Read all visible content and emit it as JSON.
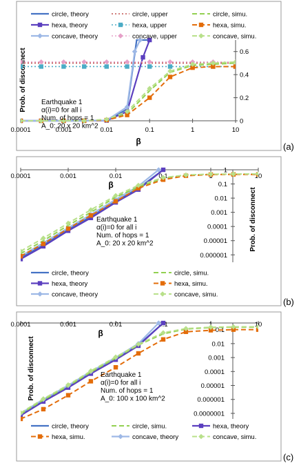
{
  "panel_labels": [
    "(a)",
    "(b)",
    "(c)"
  ],
  "colors": {
    "circle_theory": "#4472C4",
    "hexa_theory": "#5B3FBF",
    "concave_theory": "#9DB8E6",
    "circle_upper": "#C0504D",
    "hexa_upper": "#4BACC6",
    "concave_upper": "#E6A0C8",
    "circle_simu": "#92D050",
    "hexa_simu": "#E36C09",
    "concave_simu": "#B8E08A"
  },
  "chart_data": [
    {
      "type": "line",
      "panel": "(a)",
      "xlabel": "β",
      "ylabel": "Prob. of disconnect",
      "x_scale": "log",
      "y_scale": "linear",
      "xlim": [
        0.0001,
        10
      ],
      "ylim": [
        0,
        0.7
      ],
      "x_ticks": [
        "0.0001",
        "0.001",
        "0.01",
        "0.1",
        "1",
        "10"
      ],
      "y_ticks": [
        "0",
        "0.2",
        "0.4",
        "0.6"
      ],
      "annotation": [
        "Earthquake  1",
        "α(i)=0 for all i",
        "Num. of hops = 1",
        "A_0: 20 x 20 km^2"
      ],
      "legend": [
        "circle, theory",
        "circle, upper",
        "circle, simu.",
        "hexa, theory",
        "hexa, upper",
        "hexa, simu.",
        "concave, theory",
        "concave, upper",
        "concave, simu."
      ],
      "series": [
        {
          "name": "circle, theory",
          "style": "circle_theory",
          "x": [
            0.0001,
            0.0003,
            0.001,
            0.003,
            0.01,
            0.03,
            0.05,
            0.1
          ],
          "y": [
            0,
            0,
            0,
            0,
            0.003,
            0.1,
            0.7,
            0.7
          ]
        },
        {
          "name": "hexa, theory",
          "style": "hexa_theory",
          "x": [
            0.0001,
            0.0003,
            0.001,
            0.003,
            0.01,
            0.03,
            0.07,
            0.1
          ],
          "y": [
            0,
            0,
            0,
            0,
            0.002,
            0.08,
            0.55,
            0.7
          ]
        },
        {
          "name": "concave, theory",
          "style": "concave_theory",
          "x": [
            0.0001,
            0.0003,
            0.001,
            0.003,
            0.01,
            0.03,
            0.045,
            0.06
          ],
          "y": [
            0,
            0,
            0,
            0,
            0.004,
            0.12,
            0.6,
            0.7
          ]
        },
        {
          "name": "circle, upper",
          "style": "circle_upper",
          "x": [
            0.0001,
            0.0003,
            0.001,
            0.003,
            0.01,
            0.03,
            0.1,
            0.3,
            1,
            3,
            10
          ],
          "y": [
            0.5,
            0.5,
            0.5,
            0.5,
            0.5,
            0.5,
            0.5,
            0.5,
            0.5,
            0.5,
            0.5
          ]
        },
        {
          "name": "hexa, upper",
          "style": "hexa_upper",
          "x": [
            0.0001,
            0.0003,
            0.001,
            0.003,
            0.01,
            0.03,
            0.1,
            0.3,
            1,
            3,
            10
          ],
          "y": [
            0.47,
            0.47,
            0.47,
            0.47,
            0.47,
            0.47,
            0.47,
            0.47,
            0.47,
            0.47,
            0.47
          ]
        },
        {
          "name": "concave, upper",
          "style": "concave_upper",
          "x": [
            0.0001,
            0.0003,
            0.001,
            0.003,
            0.01,
            0.03,
            0.1,
            0.3,
            1,
            3,
            10
          ],
          "y": [
            0.51,
            0.51,
            0.51,
            0.51,
            0.51,
            0.51,
            0.51,
            0.51,
            0.51,
            0.51,
            0.51
          ]
        },
        {
          "name": "circle, simu.",
          "style": "circle_simu",
          "x": [
            0.0001,
            0.0003,
            0.001,
            0.003,
            0.01,
            0.03,
            0.1,
            0.3,
            1,
            3,
            10
          ],
          "y": [
            0,
            0,
            0,
            0,
            0.01,
            0.06,
            0.26,
            0.42,
            0.48,
            0.49,
            0.5
          ]
        },
        {
          "name": "hexa, simu.",
          "style": "hexa_simu",
          "x": [
            0.0001,
            0.0003,
            0.001,
            0.003,
            0.01,
            0.03,
            0.1,
            0.3,
            1,
            3,
            10
          ],
          "y": [
            0,
            0,
            0,
            0,
            0.006,
            0.05,
            0.2,
            0.38,
            0.46,
            0.47,
            0.47
          ]
        },
        {
          "name": "concave, simu.",
          "style": "concave_simu",
          "x": [
            0.0001,
            0.0003,
            0.001,
            0.003,
            0.01,
            0.03,
            0.1,
            0.3,
            1,
            3,
            10
          ],
          "y": [
            0,
            0,
            0,
            0,
            0.012,
            0.08,
            0.28,
            0.43,
            0.49,
            0.5,
            0.51
          ]
        }
      ]
    },
    {
      "type": "line",
      "panel": "(b)",
      "xlabel": "β",
      "ylabel": "Prob. of disconnect",
      "x_scale": "log",
      "y_scale": "log",
      "xlim": [
        0.0001,
        10
      ],
      "ylim": [
        3e-07,
        1
      ],
      "x_ticks": [
        "0.0001",
        "0.001",
        "0.01",
        "0.1",
        "1",
        "10"
      ],
      "y_ticks": [
        "1",
        "0.1",
        "0.01",
        "0.001",
        "0.0001",
        "0.00001",
        "0.000001"
      ],
      "annotation": [
        "Earthquake 1",
        "α(i)=0 for all i",
        "Num. of hops = 1",
        "A_0: 20 x 20 km^2"
      ],
      "legend": [
        "circle, theory",
        "circle, simu.",
        "hexa, theory",
        "hexa, simu.",
        "concave, theory",
        "concave, simu."
      ],
      "series": [
        {
          "name": "circle, theory",
          "style": "circle_theory",
          "x": [
            0.0001,
            0.0003,
            0.001,
            0.003,
            0.01,
            0.03,
            0.1
          ],
          "y": [
            6e-07,
            5e-06,
            6e-05,
            0.0005,
            0.006,
            0.05,
            1
          ]
        },
        {
          "name": "hexa, theory",
          "style": "hexa_theory",
          "x": [
            0.0001,
            0.0003,
            0.001,
            0.003,
            0.01,
            0.03,
            0.1
          ],
          "y": [
            5e-07,
            4e-06,
            5e-05,
            0.0004,
            0.005,
            0.04,
            1
          ]
        },
        {
          "name": "concave, theory",
          "style": "concave_theory",
          "x": [
            0.0001,
            0.0003,
            0.001,
            0.003,
            0.01,
            0.03,
            0.08
          ],
          "y": [
            8e-07,
            7e-06,
            8e-05,
            0.0007,
            0.008,
            0.07,
            1
          ]
        },
        {
          "name": "circle, simu.",
          "style": "circle_simu",
          "x": [
            0.0001,
            0.0003,
            0.001,
            0.003,
            0.01,
            0.03,
            0.1,
            0.3,
            1,
            3,
            10
          ],
          "y": [
            1.2e-06,
            1e-05,
            0.00012,
            0.001,
            0.012,
            0.06,
            0.26,
            0.42,
            0.48,
            0.49,
            0.5
          ]
        },
        {
          "name": "hexa, simu.",
          "style": "hexa_simu",
          "x": [
            0.0001,
            0.0003,
            0.001,
            0.003,
            0.01,
            0.03,
            0.1,
            0.3,
            1,
            3,
            10
          ],
          "y": [
            8e-07,
            6e-06,
            7e-05,
            0.0006,
            0.006,
            0.05,
            0.2,
            0.38,
            0.46,
            0.47,
            0.47
          ]
        },
        {
          "name": "concave, simu.",
          "style": "concave_simu",
          "x": [
            0.0001,
            0.0003,
            0.001,
            0.003,
            0.01,
            0.03,
            0.1,
            0.3,
            1,
            3,
            10
          ],
          "y": [
            1.8e-06,
            1.5e-05,
            0.00017,
            0.0015,
            0.015,
            0.08,
            0.28,
            0.43,
            0.49,
            0.5,
            0.51
          ]
        }
      ]
    },
    {
      "type": "line",
      "panel": "(c)",
      "xlabel": "β",
      "ylabel": "Prob. of disconnect",
      "x_scale": "log",
      "y_scale": "log",
      "xlim": [
        0.0001,
        10
      ],
      "ylim": [
        4e-08,
        0.3
      ],
      "x_ticks": [
        "0.0001",
        "0.001",
        "0.01",
        "0.1",
        "1",
        "10"
      ],
      "y_ticks": [
        "0.1",
        "0.01",
        "0.001",
        "0.0001",
        "0.00001",
        "0.000001",
        "0.0000001"
      ],
      "annotation": [
        "Earthquake  1",
        "α(i)=0 for all i",
        "Num. of hops = 1",
        "A_0: 100 x 100 km^2"
      ],
      "legend": [
        "circle, theory",
        "circle, simu.",
        "hexa, theory",
        "hexa, simu.",
        "concave, theory",
        "concave, simu."
      ],
      "series": [
        {
          "name": "circle, theory",
          "style": "circle_theory",
          "x": [
            0.0001,
            0.0003,
            0.001,
            0.003,
            0.01,
            0.03,
            0.1
          ],
          "y": [
            8e-08,
            8e-07,
            8e-06,
            8e-05,
            0.0008,
            0.008,
            0.3
          ]
        },
        {
          "name": "hexa, theory",
          "style": "hexa_theory",
          "x": [
            0.0001,
            0.0003,
            0.001,
            0.003,
            0.01,
            0.03,
            0.1
          ],
          "y": [
            7e-08,
            7e-07,
            7e-06,
            7e-05,
            0.0007,
            0.007,
            0.3
          ]
        },
        {
          "name": "concave, theory",
          "style": "concave_theory",
          "x": [
            0.0001,
            0.0003,
            0.001,
            0.003,
            0.01,
            0.03,
            0.08
          ],
          "y": [
            1e-07,
            1e-06,
            1e-05,
            0.0001,
            0.001,
            0.01,
            0.3
          ]
        },
        {
          "name": "circle, simu.",
          "style": "circle_simu",
          "x": [
            0.0001,
            0.0003,
            0.001,
            0.003,
            0.01,
            0.03,
            0.1,
            0.3,
            1,
            3,
            10
          ],
          "y": [
            9e-08,
            9e-07,
            9e-06,
            9e-05,
            0.0009,
            0.008,
            0.05,
            0.11,
            0.14,
            0.15,
            0.15
          ]
        },
        {
          "name": "hexa, simu.",
          "style": "hexa_simu",
          "x": [
            0.0001,
            0.0003,
            0.001,
            0.003,
            0.01,
            0.03,
            0.1,
            0.3,
            1,
            3,
            10
          ],
          "y": [
            2e-08,
            2e-07,
            2e-06,
            2e-05,
            0.0002,
            0.002,
            0.02,
            0.07,
            0.09,
            0.1,
            0.1
          ]
        },
        {
          "name": "concave, simu.",
          "style": "concave_simu",
          "x": [
            0.0001,
            0.0003,
            0.001,
            0.003,
            0.01,
            0.03,
            0.1,
            0.3,
            1,
            3,
            10
          ],
          "y": [
            1.1e-07,
            1.1e-06,
            1.1e-05,
            0.00011,
            0.0011,
            0.009,
            0.06,
            0.12,
            0.15,
            0.16,
            0.16
          ]
        }
      ]
    }
  ]
}
